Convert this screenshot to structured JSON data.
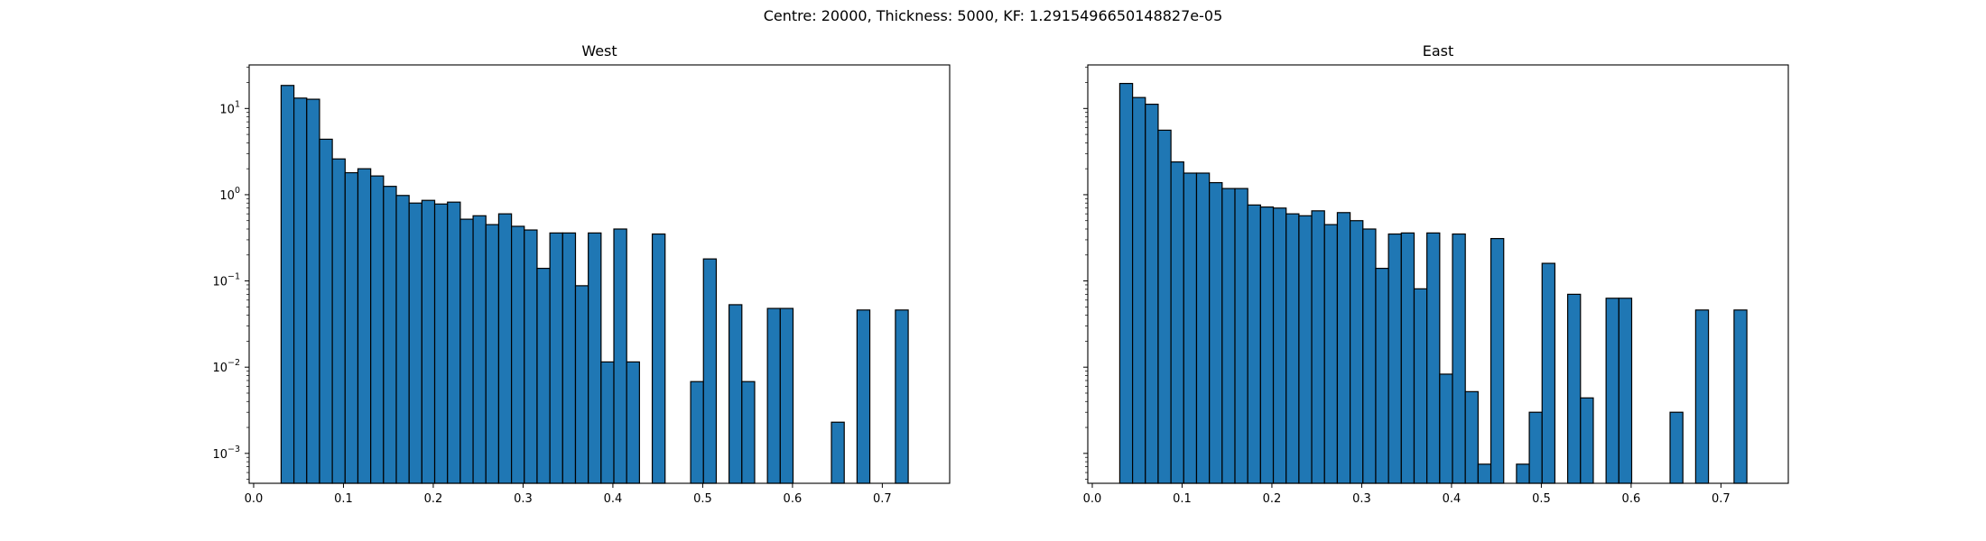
{
  "suptitle": "Centre: 20000, Thickness: 5000, KF: 1.2915496650148827e-05",
  "chart_data": [
    {
      "type": "bar",
      "title": "West",
      "yscale": "log",
      "xlim": [
        -0.005,
        0.775
      ],
      "ylim": [
        0.00045,
        32
      ],
      "xticks": [
        "0.0",
        "0.1",
        "0.2",
        "0.3",
        "0.4",
        "0.5",
        "0.6",
        "0.7"
      ],
      "yticks": [
        "10^-3",
        "10^-2",
        "10^-1",
        "10^0",
        "10^1"
      ],
      "bin_width": 0.01425,
      "bin_start": 0.0306,
      "values": [
        18.5,
        13.2,
        12.8,
        4.4,
        2.6,
        1.8,
        2.0,
        1.65,
        1.25,
        0.98,
        0.8,
        0.86,
        0.78,
        0.82,
        0.52,
        0.57,
        0.45,
        0.6,
        0.43,
        0.39,
        0.14,
        0.36,
        0.36,
        0.088,
        0.36,
        0.0115,
        0.4,
        0.0115,
        null,
        0.35,
        null,
        null,
        0.0068,
        0.18,
        null,
        0.053,
        0.0068,
        null,
        0.048,
        0.048,
        null,
        null,
        null,
        0.0023,
        null,
        0.046,
        null,
        null,
        0.046
      ],
      "bar_color": "#1f77b4",
      "edge_color": "#000000"
    },
    {
      "type": "bar",
      "title": "East",
      "yscale": "log",
      "xlim": [
        -0.005,
        0.775
      ],
      "ylim": [
        0.00045,
        32
      ],
      "xticks": [
        "0.0",
        "0.1",
        "0.2",
        "0.3",
        "0.4",
        "0.5",
        "0.6",
        "0.7"
      ],
      "yticks": [],
      "bin_width": 0.01425,
      "bin_start": 0.0306,
      "values": [
        19.5,
        13.4,
        11.2,
        5.6,
        2.4,
        1.78,
        1.78,
        1.38,
        1.18,
        1.18,
        0.76,
        0.72,
        0.7,
        0.6,
        0.57,
        0.65,
        0.45,
        0.62,
        0.5,
        0.4,
        0.14,
        0.35,
        0.36,
        0.081,
        0.36,
        0.0083,
        0.35,
        0.0052,
        0.00075,
        0.31,
        null,
        0.00075,
        0.003,
        0.16,
        null,
        0.07,
        0.0044,
        null,
        0.063,
        0.063,
        null,
        null,
        null,
        0.003,
        null,
        0.046,
        null,
        null,
        0.046
      ],
      "bar_color": "#1f77b4",
      "edge_color": "#000000"
    }
  ]
}
